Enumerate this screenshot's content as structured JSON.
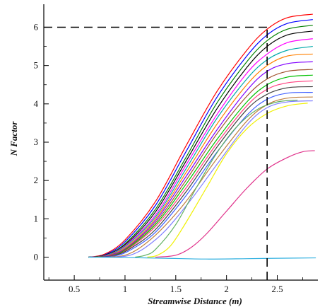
{
  "chart_data": {
    "type": "line",
    "title": "",
    "xlabel": "Streamwise Distance (m)",
    "ylabel": "N Factor",
    "xlim": [
      0.2,
      2.9
    ],
    "ylim": [
      -0.6,
      6.6
    ],
    "xticks": [
      0.5,
      1,
      1.5,
      2,
      2.5
    ],
    "yticks": [
      0,
      1,
      2,
      3,
      4,
      5,
      6
    ],
    "xtick_labels": [
      "0.5",
      "1",
      "1.5",
      "2",
      "2.5"
    ],
    "ytick_labels": [
      "0",
      "1",
      "2",
      "3",
      "4",
      "5",
      "6"
    ],
    "grid": false,
    "legend": "none",
    "reference_lines": [
      {
        "name": "horizontal-reference",
        "style": "dashed",
        "color": "#000000",
        "x": [
          0.2,
          2.4
        ],
        "y": [
          6.0,
          6.0
        ]
      },
      {
        "name": "vertical-reference",
        "style": "dashed",
        "color": "#000000",
        "x": [
          2.4,
          2.4
        ],
        "y": [
          -0.6,
          6.0
        ]
      }
    ],
    "series_style": "many densely packed colored N-factor curves rising from near zero and leveling off near the right edge",
    "series": [
      {
        "color": "#ff0000",
        "x": [
          0.64,
          0.8,
          1.0,
          1.3,
          1.6,
          1.9,
          2.2,
          2.4,
          2.6,
          2.85
        ],
        "values": [
          0,
          0.08,
          0.45,
          1.45,
          2.9,
          4.3,
          5.4,
          5.95,
          6.25,
          6.34
        ]
      },
      {
        "color": "#0000ff",
        "x": [
          0.64,
          0.8,
          1.0,
          1.3,
          1.6,
          1.9,
          2.2,
          2.4,
          2.6,
          2.85
        ],
        "values": [
          0,
          0.06,
          0.4,
          1.35,
          2.75,
          4.15,
          5.25,
          5.8,
          6.1,
          6.2
        ]
      },
      {
        "color": "#008000",
        "x": [
          0.64,
          0.8,
          1.0,
          1.3,
          1.6,
          1.9,
          2.2,
          2.4,
          2.6,
          2.85
        ],
        "values": [
          0,
          0.05,
          0.35,
          1.25,
          2.6,
          4.0,
          5.1,
          5.65,
          5.95,
          6.05
        ]
      },
      {
        "color": "#000000",
        "x": [
          0.64,
          0.8,
          1.0,
          1.3,
          1.6,
          1.9,
          2.2,
          2.4,
          2.6,
          2.85
        ],
        "values": [
          0,
          0.05,
          0.32,
          1.18,
          2.5,
          3.85,
          4.95,
          5.5,
          5.8,
          5.9
        ]
      },
      {
        "color": "#ff00ff",
        "x": [
          0.66,
          0.8,
          1.0,
          1.3,
          1.6,
          1.9,
          2.2,
          2.4,
          2.6,
          2.85
        ],
        "values": [
          0,
          0.04,
          0.3,
          1.1,
          2.4,
          3.7,
          4.8,
          5.3,
          5.6,
          5.7
        ]
      },
      {
        "color": "#00aaaa",
        "x": [
          0.66,
          0.8,
          1.0,
          1.3,
          1.6,
          1.9,
          2.2,
          2.4,
          2.6,
          2.85
        ],
        "values": [
          0,
          0.04,
          0.28,
          1.05,
          2.3,
          3.6,
          4.65,
          5.15,
          5.4,
          5.5
        ]
      },
      {
        "color": "#ff8000",
        "x": [
          0.68,
          0.8,
          1.0,
          1.3,
          1.6,
          1.9,
          2.2,
          2.4,
          2.6,
          2.85
        ],
        "values": [
          0,
          0.03,
          0.25,
          1.0,
          2.2,
          3.45,
          4.5,
          5.0,
          5.25,
          5.3
        ]
      },
      {
        "color": "#8000ff",
        "x": [
          0.68,
          0.8,
          1.0,
          1.3,
          1.6,
          1.9,
          2.2,
          2.4,
          2.6,
          2.85
        ],
        "values": [
          0,
          0.03,
          0.22,
          0.95,
          2.1,
          3.3,
          4.35,
          4.85,
          5.05,
          5.1
        ]
      },
      {
        "color": "#a0522d",
        "x": [
          0.7,
          0.85,
          1.0,
          1.3,
          1.6,
          1.9,
          2.2,
          2.4,
          2.6,
          2.85
        ],
        "values": [
          0,
          0.05,
          0.2,
          0.9,
          2.0,
          3.2,
          4.2,
          4.65,
          4.85,
          4.9
        ]
      },
      {
        "color": "#00c000",
        "x": [
          0.7,
          0.85,
          1.0,
          1.3,
          1.6,
          1.9,
          2.2,
          2.4,
          2.6,
          2.85
        ],
        "values": [
          0,
          0.04,
          0.18,
          0.85,
          1.9,
          3.05,
          4.05,
          4.5,
          4.7,
          4.75
        ]
      },
      {
        "color": "#ff4080",
        "x": [
          0.72,
          0.85,
          1.0,
          1.3,
          1.6,
          1.9,
          2.2,
          2.4,
          2.6,
          2.85
        ],
        "values": [
          0,
          0.04,
          0.16,
          0.8,
          1.8,
          2.95,
          3.95,
          4.38,
          4.55,
          4.6
        ]
      },
      {
        "color": "#404040",
        "x": [
          0.74,
          0.9,
          1.05,
          1.3,
          1.6,
          1.9,
          2.2,
          2.4,
          2.6,
          2.85
        ],
        "values": [
          0,
          0.05,
          0.22,
          0.72,
          1.7,
          2.85,
          3.85,
          4.25,
          4.42,
          4.45
        ]
      },
      {
        "color": "#4060ff",
        "x": [
          0.78,
          0.9,
          1.05,
          1.3,
          1.6,
          1.9,
          2.2,
          2.4,
          2.6,
          2.85
        ],
        "values": [
          0,
          0.03,
          0.18,
          0.65,
          1.6,
          2.72,
          3.7,
          4.12,
          4.28,
          4.3
        ]
      },
      {
        "color": "#c08040",
        "x": [
          0.84,
          1.0,
          1.15,
          1.35,
          1.6,
          1.9,
          2.2,
          2.4,
          2.6,
          2.85
        ],
        "values": [
          0,
          0.05,
          0.25,
          0.7,
          1.45,
          2.55,
          3.55,
          3.98,
          4.15,
          4.18
        ]
      },
      {
        "color": "#8080ff",
        "x": [
          0.9,
          1.05,
          1.2,
          1.4,
          1.65,
          1.9,
          2.2,
          2.4,
          2.6,
          2.85
        ],
        "values": [
          0,
          0.05,
          0.25,
          0.7,
          1.5,
          2.4,
          3.45,
          3.9,
          4.05,
          4.08
        ]
      },
      {
        "color": "#60b060",
        "x": [
          1.1,
          1.2,
          1.3,
          1.5,
          1.7,
          1.9,
          2.1,
          2.3,
          2.5,
          2.7
        ],
        "values": [
          0,
          0.05,
          0.2,
          0.85,
          1.8,
          2.7,
          3.4,
          3.85,
          4.05,
          4.1
        ]
      },
      {
        "color": "#f0f000",
        "x": [
          1.22,
          1.32,
          1.45,
          1.6,
          1.8,
          2.0,
          2.2,
          2.4,
          2.6,
          2.8
        ],
        "values": [
          0,
          0.05,
          0.3,
          0.9,
          1.8,
          2.7,
          3.35,
          3.75,
          3.95,
          4.02
        ]
      },
      {
        "color": "#e0308a",
        "x": [
          1.3,
          1.5,
          1.65,
          1.8,
          2.0,
          2.2,
          2.4,
          2.6,
          2.75,
          2.87
        ],
        "values": [
          0,
          0.05,
          0.25,
          0.6,
          1.2,
          1.8,
          2.3,
          2.6,
          2.75,
          2.78
        ]
      },
      {
        "color": "#30b0e0",
        "x": [
          0.64,
          1.0,
          1.4,
          1.8,
          2.2,
          2.5,
          2.88
        ],
        "values": [
          0,
          -0.01,
          -0.03,
          -0.05,
          -0.04,
          -0.03,
          -0.02
        ]
      }
    ]
  }
}
